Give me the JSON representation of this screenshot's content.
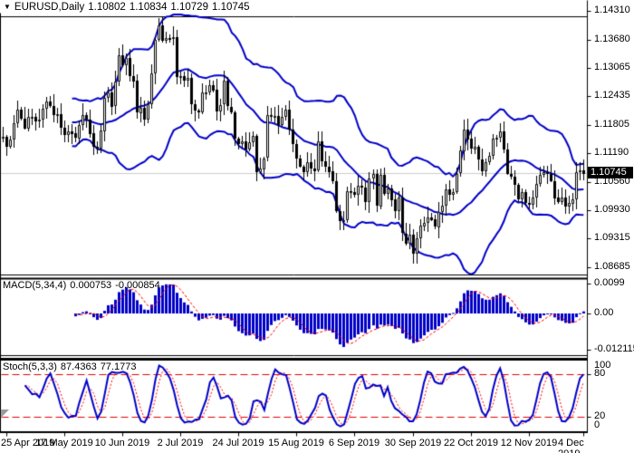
{
  "window": {
    "title": {
      "marker": "▼",
      "symbol": "EURUSD,Daily",
      "open": "1.10802",
      "high": "1.10834",
      "low": "1.10729",
      "close": "1.10745"
    }
  },
  "main_chart": {
    "y_ticks": [
      "1.14310",
      "1.13680",
      "1.13065",
      "1.12435",
      "1.11805",
      "1.11190",
      "1.10560",
      "1.09930",
      "1.09315",
      "1.08685"
    ],
    "current_price": "1.10745"
  },
  "macd_pane": {
    "label": "MACD(5,34,4)",
    "value_main": "0.000753",
    "value_signal": "-0.000854",
    "y_ticks": [
      "0.0099",
      "0.00",
      "-0.012115"
    ]
  },
  "stoch_pane": {
    "label": "Stoch(5,3,3)",
    "value_main": "87.4363",
    "value_signal": "77.1773",
    "y_ticks": [
      "100",
      "80",
      "20",
      "0"
    ]
  },
  "x_axis": {
    "labels": [
      "25 Apr 2019",
      "17 May 2019",
      "10 Jun 2019",
      "2 Jul 2019",
      "24 Jul 2019",
      "15 Aug 2019",
      "6 Sep 2019",
      "30 Sep 2019",
      "22 Oct 2019",
      "12 Nov 2019",
      "4 Dec 2019"
    ],
    "label_bar_indices": [
      1,
      17,
      33,
      49,
      65,
      81,
      97,
      113,
      129,
      145,
      160
    ]
  },
  "colors": {
    "background": "#FFFFFF",
    "border": "#000000",
    "band_blue": "#0000C8",
    "bull_fill": "#FFFFFF",
    "bear_fill": "#000000",
    "candle_outline": "#000000",
    "macd_hist": "#0000C8",
    "signal_red": "#FF0000",
    "level_red": "#E60000",
    "stoch_main": "#0000C8",
    "current_line_gray": "#CBCBCB",
    "price_box_bg": "#000000",
    "price_box_text": "#FFFFFF"
  },
  "chart_data": {
    "type": "candlestick",
    "symbol": "EURUSD",
    "timeframe": "Daily",
    "quote_ohlc": [
      1.10802,
      1.10834,
      1.10729,
      1.10745
    ],
    "x_labels": [
      "25 Apr 2019",
      "17 May 2019",
      "10 Jun 2019",
      "2 Jul 2019",
      "24 Jul 2019",
      "15 Aug 2019",
      "6 Sep 2019",
      "30 Sep 2019",
      "22 Oct 2019",
      "12 Nov 2019",
      "4 Dec 2019"
    ],
    "first_open": 1.115,
    "closes": [
      1.1154,
      1.1133,
      1.1149,
      1.1185,
      1.1215,
      1.1195,
      1.1174,
      1.1199,
      1.1199,
      1.119,
      1.1193,
      1.1216,
      1.1232,
      1.1223,
      1.1204,
      1.1205,
      1.1175,
      1.1159,
      1.1167,
      1.1162,
      1.1152,
      1.1181,
      1.1203,
      1.1193,
      1.1162,
      1.1132,
      1.1128,
      1.1168,
      1.1241,
      1.1253,
      1.1222,
      1.1276,
      1.1334,
      1.1312,
      1.1328,
      1.1288,
      1.1277,
      1.1207,
      1.1219,
      1.1193,
      1.1227,
      1.1294,
      1.1368,
      1.1399,
      1.1366,
      1.1372,
      1.1369,
      1.1373,
      1.1285,
      1.1287,
      1.1278,
      1.1284,
      1.1226,
      1.1212,
      1.1208,
      1.1252,
      1.1253,
      1.1269,
      1.1258,
      1.1211,
      1.1225,
      1.1277,
      1.1221,
      1.1209,
      1.1151,
      1.1139,
      1.1145,
      1.1128,
      1.1143,
      1.1156,
      1.1077,
      1.1085,
      1.1108,
      1.1202,
      1.12,
      1.12,
      1.1181,
      1.1199,
      1.1214,
      1.1171,
      1.1139,
      1.1108,
      1.109,
      1.1078,
      1.1099,
      1.1086,
      1.1081,
      1.1144,
      1.1101,
      1.109,
      1.1079,
      1.1057,
      1.0991,
      1.097,
      1.0972,
      1.1035,
      1.1034,
      1.1028,
      1.1047,
      1.1043,
      1.1011,
      1.1063,
      1.1073,
      1.1003,
      1.1072,
      1.1031,
      1.1042,
      1.1017,
      1.0992,
      1.1021,
      1.0943,
      1.0921,
      1.094,
      1.0899,
      1.0932,
      1.0959,
      1.0966,
      1.0978,
      1.0973,
      1.0957,
      1.099,
      1.1004,
      1.104,
      1.1028,
      1.1034,
      1.1074,
      1.1124,
      1.1171,
      1.115,
      1.1128,
      1.1133,
      1.1105,
      1.108,
      1.1099,
      1.1113,
      1.1151,
      1.1152,
      1.1166,
      1.1127,
      1.1074,
      1.1068,
      1.105,
      1.1018,
      1.1033,
      1.101,
      1.1006,
      1.1021,
      1.1051,
      1.1071,
      1.1077,
      1.1074,
      1.1058,
      1.1021,
      1.1012,
      1.1022,
      1.1002,
      1.1009,
      1.1018,
      1.1078,
      1.1082,
      1.1075
    ],
    "indicators": [
      {
        "name": "Bollinger Bands",
        "period": 20,
        "deviation": 2
      },
      {
        "name": "MACD",
        "fast": 5,
        "slow": 34,
        "signal": 4,
        "last_main": 0.000753,
        "last_signal": -0.000854
      },
      {
        "name": "Stochastic",
        "k": 5,
        "d": 3,
        "slowing": 3,
        "last_main": 87.4363,
        "last_signal": 77.1773
      }
    ],
    "y_axis": {
      "ticks": [
        1.1431,
        1.1368,
        1.13065,
        1.12435,
        1.11805,
        1.1119,
        1.1056,
        1.0993,
        1.09315,
        1.08685
      ],
      "current": 1.10745
    },
    "macd_axis": {
      "max": 0.0099,
      "zero": 0.0,
      "min": -0.012115
    },
    "stoch_axis": {
      "max": 100,
      "levels": [
        80,
        20
      ],
      "min": 0
    }
  }
}
